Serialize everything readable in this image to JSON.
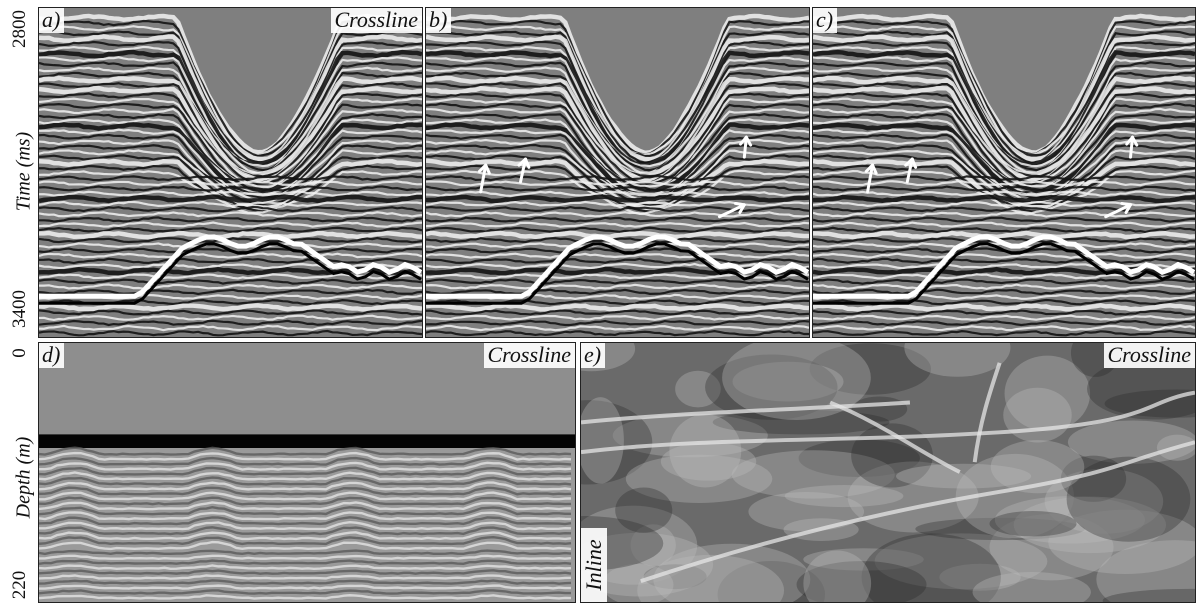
{
  "top_axis": {
    "label": "Time (ms)",
    "tick_top": "2800",
    "tick_bottom": "3400"
  },
  "bottom_axis": {
    "label": "Depth (m)",
    "tick_top": "0",
    "tick_bottom": "220"
  },
  "panels": {
    "a": {
      "tag": "a)",
      "title": "Crossline"
    },
    "b": {
      "tag": "b)"
    },
    "c": {
      "tag": "c)"
    },
    "d": {
      "tag": "d)",
      "title": "Crossline"
    },
    "e": {
      "tag": "e)",
      "title": "Crossline",
      "side_label": "Inline"
    }
  },
  "colors": {
    "arrow": "#ffffff",
    "seismic_dark": "#141414",
    "seismic_light": "#f2f2f2",
    "depth_top_gray": "#8e8e8e",
    "depth_bar": "#050505"
  }
}
